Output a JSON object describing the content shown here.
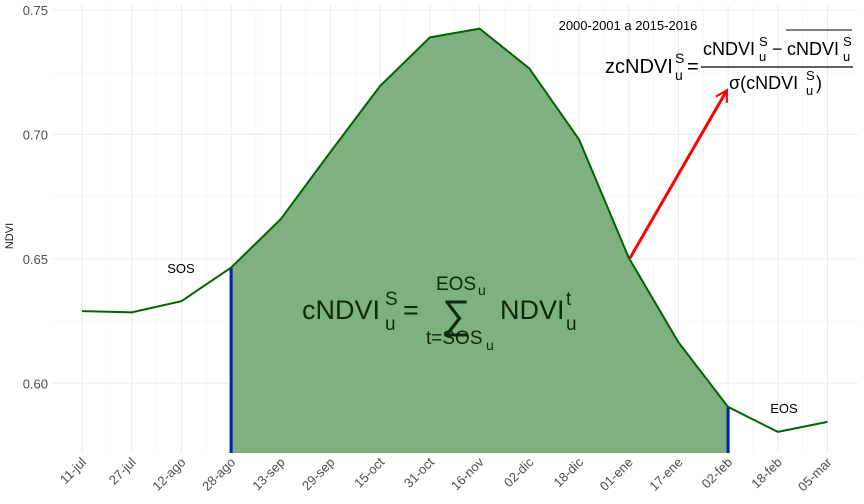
{
  "chart_data": {
    "type": "area",
    "title": "",
    "xlabel": "",
    "ylabel": "NDVI",
    "ylim": [
      0.572,
      0.752
    ],
    "yticks": [
      0.6,
      0.65,
      0.7,
      0.75
    ],
    "ytick_labels": [
      "0.60",
      "0.65",
      "0.70",
      "0.75"
    ],
    "categories": [
      "11-jul",
      "27-jul",
      "12-ago",
      "28-ago",
      "13-sep",
      "29-sep",
      "15-oct",
      "31-oct",
      "16-nov",
      "02-dic",
      "18-dic",
      "01-ene",
      "17-ene",
      "02-feb",
      "18-feb",
      "05-mar"
    ],
    "values": [
      0.629,
      0.6285,
      0.633,
      0.6465,
      0.666,
      0.693,
      0.7195,
      0.739,
      0.7425,
      0.7265,
      0.698,
      0.6505,
      0.6165,
      0.5905,
      0.5805,
      0.5845
    ],
    "line_color": "#006400",
    "fill_color": "#7fb07f",
    "fill_range": [
      "28-ago",
      "02-feb"
    ],
    "boundary_color": "#0022aa",
    "arrow_color": "#ff0000",
    "grid": true,
    "annotations": {
      "sos": "SOS",
      "eos": "EOS",
      "period": "2000-2001 a 2015-2016"
    },
    "formula_area": {
      "lhs_base": "cNDVI",
      "lhs_sup": "S",
      "lhs_sub": "u",
      "equals": "=",
      "sum_top_base": "EOS",
      "sum_top_sub": "u",
      "sigma": "∑",
      "sum_bottom_base": "t=SOS",
      "sum_bottom_sub": "u",
      "term_base": "NDVI",
      "term_sup": "t",
      "term_sub": "u"
    },
    "formula_z": {
      "lhs_base": "zcNDVI",
      "lhs_sup": "S",
      "lhs_sub": "u",
      "equals": "=",
      "num_base1": "cNDVI",
      "num_sup1": "S",
      "num_sub1": "u",
      "minus": "−",
      "num_base2": "cNDVI",
      "num_sup2": "S",
      "num_sub2": "u",
      "den_open": "σ(cNDVI",
      "den_sup": "S",
      "den_sub": "u",
      "den_close": ")"
    }
  }
}
